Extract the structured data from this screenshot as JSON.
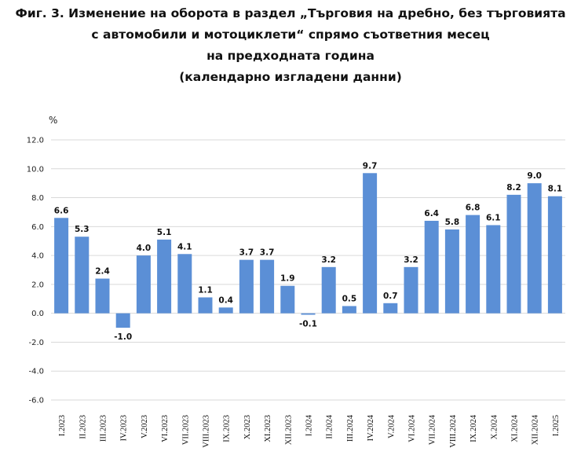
{
  "title_lines": [
    "Фиг. 3. Изменение на оборота в раздел „Търговия на дребно, без търговията",
    "с автомобили и мотоциклети“ спрямо съответния месец",
    "на предходната година",
    "(календарно изгладени данни)"
  ],
  "chart_data": {
    "type": "bar",
    "title": "Фиг. 3. Изменение на оборота в раздел „Търговия на дребно, без търговията с автомобили и мотоциклети“ спрямо съответния месец на предходната година (календарно изгладени данни)",
    "ylabel": "%",
    "xlabel": "",
    "ylim": [
      -6.0,
      12.0
    ],
    "yticks": [
      "-6.0",
      "-4.0",
      "-2.0",
      "0.0",
      "2.0",
      "4.0",
      "6.0",
      "8.0",
      "10.0",
      "12.0"
    ],
    "grid": true,
    "bar_color": "#5b8fd6",
    "categories": [
      "I.2023",
      "II.2023",
      "III.2023",
      "IV.2023",
      "V.2023",
      "VI.2023",
      "VII.2023",
      "VIII.2023",
      "IX.2023",
      "X.2023",
      "XI.2023",
      "XII.2023",
      "I.2024",
      "II.2024",
      "III.2024",
      "IV.2024",
      "V.2024",
      "VI.2024",
      "VII.2024",
      "VIII.2024",
      "IX.2024",
      "X.2024",
      "XI.2024",
      "XII.2024",
      "I.2025"
    ],
    "values": [
      6.6,
      5.3,
      2.4,
      -1.0,
      4.0,
      5.1,
      4.1,
      1.1,
      0.4,
      3.7,
      3.7,
      1.9,
      -0.1,
      3.2,
      0.5,
      9.7,
      0.7,
      3.2,
      6.4,
      5.8,
      6.8,
      6.1,
      8.2,
      9.0,
      8.1
    ],
    "value_labels": [
      "6.6",
      "5.3",
      "2.4",
      "-1.0",
      "4.0",
      "5.1",
      "4.1",
      "1.1",
      "0.4",
      "3.7",
      "3.7",
      "1.9",
      "-0.1",
      "3.2",
      "0.5",
      "9.7",
      "0.7",
      "3.2",
      "6.4",
      "5.8",
      "6.8",
      "6.1",
      "8.2",
      "9.0",
      "8.1"
    ]
  }
}
